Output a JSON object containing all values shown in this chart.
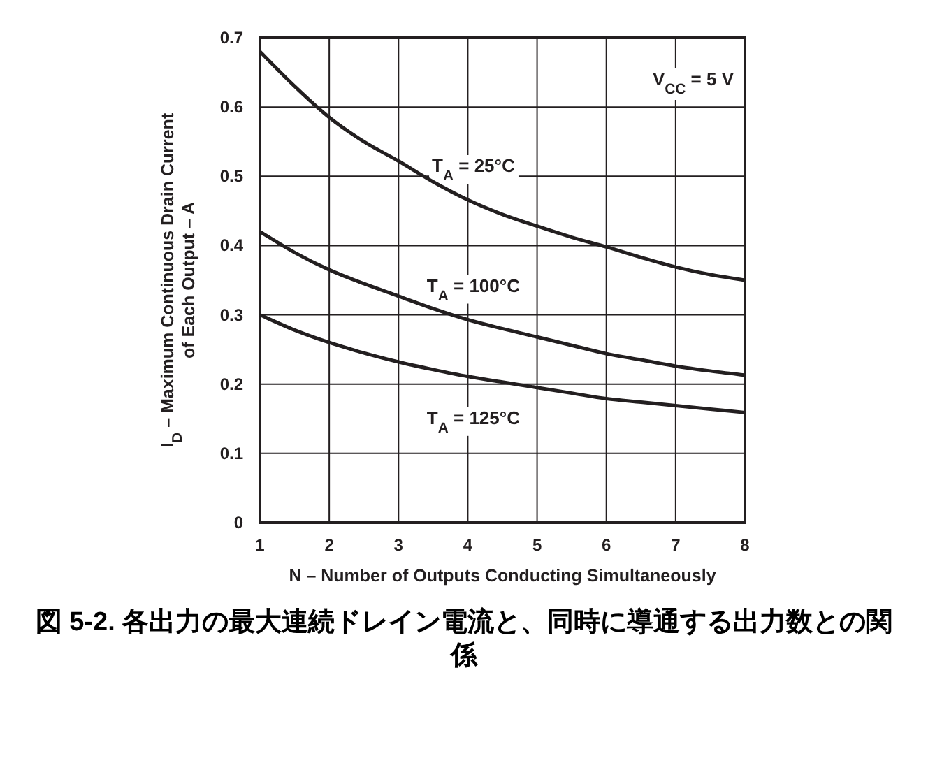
{
  "chart_data": {
    "type": "line",
    "title": "図 5-2. 各出力の最大連続ドレイン電流と、同時に導通する出力数との関係",
    "xlabel": "N – Number of Outputs Conducting Simultaneously",
    "ylabel": "I$_{D}$ – Maximum Continuous Drain Current\nof Each Output – A",
    "x": [
      1,
      1.5,
      2,
      2.5,
      3,
      3.5,
      4,
      4.5,
      5,
      5.5,
      6,
      6.5,
      7,
      7.5,
      8
    ],
    "series": [
      {
        "name": "T$_{A}$ = 25°C",
        "color": "#231f20",
        "values": [
          0.68,
          0.63,
          0.585,
          0.55,
          0.522,
          0.492,
          0.466,
          0.445,
          0.428,
          0.412,
          0.398,
          0.383,
          0.369,
          0.358,
          0.35
        ]
      },
      {
        "name": "T$_{A}$ = 100°C",
        "color": "#231f20",
        "values": [
          0.42,
          0.39,
          0.365,
          0.345,
          0.327,
          0.309,
          0.293,
          0.28,
          0.268,
          0.256,
          0.244,
          0.235,
          0.226,
          0.219,
          0.213
        ]
      },
      {
        "name": "T$_{A}$ = 125°C",
        "color": "#231f20",
        "values": [
          0.3,
          0.278,
          0.26,
          0.245,
          0.232,
          0.221,
          0.211,
          0.203,
          0.195,
          0.187,
          0.179,
          0.174,
          0.169,
          0.164,
          0.159
        ]
      }
    ],
    "annotations": [
      "V$_{CC}$ = 5 V"
    ],
    "xlim": [
      1,
      8
    ],
    "ylim": [
      0,
      0.7
    ],
    "xticks": [
      1,
      2,
      3,
      4,
      5,
      6,
      7,
      8
    ],
    "yticks": [
      0,
      0.1,
      0.2,
      0.3,
      0.4,
      0.5,
      0.6,
      0.7
    ],
    "grid": true
  }
}
